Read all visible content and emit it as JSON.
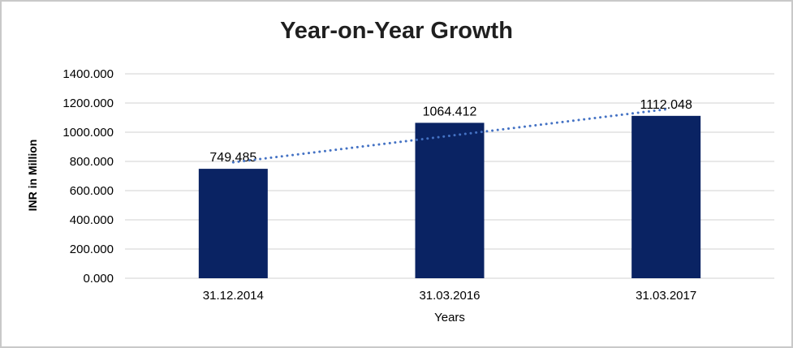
{
  "chart_data": {
    "type": "bar",
    "title": "Year-on-Year Growth",
    "categories": [
      "31.12.2014",
      "31.03.2016",
      "31.03.2017"
    ],
    "values": [
      749.485,
      1064.412,
      1112.048
    ],
    "data_labels": [
      "749.485",
      "1064.412",
      "1112.048"
    ],
    "xlabel": "Years",
    "ylabel": "INR in Million",
    "ylim": [
      0,
      1400
    ],
    "ytick_step": 200,
    "ytick_labels": [
      "0.000",
      "200.000",
      "400.000",
      "600.000",
      "800.000",
      "1000.000",
      "1200.000",
      "1400.000"
    ],
    "grid": true,
    "legend": "none",
    "trendline": {
      "type": "linear",
      "style": "dotted",
      "color": "#4472C4",
      "start_value": 794,
      "end_value": 1157
    },
    "colors": {
      "bar": "#0A2363",
      "gridline": "#D9D9D9",
      "text": "#000000",
      "title": "#1F1F1F",
      "frame_border": "#C9C9C9",
      "background": "#FFFFFF"
    }
  }
}
